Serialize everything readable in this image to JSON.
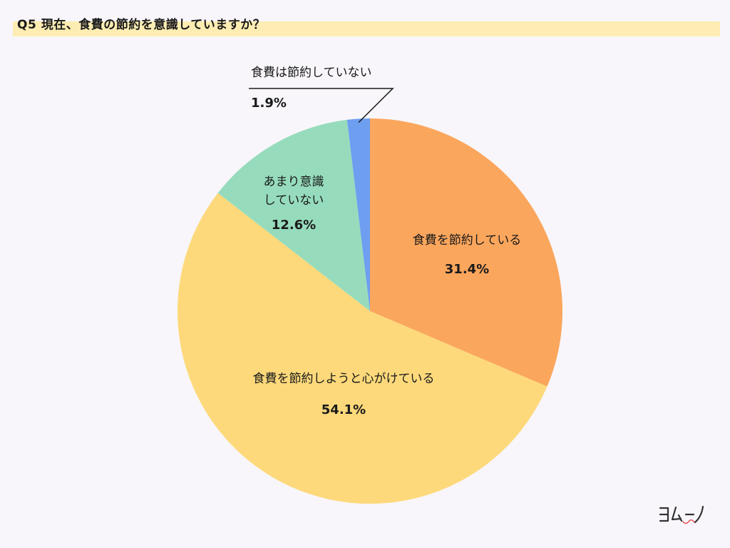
{
  "header": {
    "title": "Q5 現在、食費の節約を意識していますか？"
  },
  "chart_data": {
    "type": "pie",
    "start_angle_deg": 0,
    "direction": "clockwise",
    "slices": [
      {
        "label_lines": [
          "食費を節約している"
        ],
        "value": 31.4,
        "value_label": "31.4%",
        "color": "#fba65d"
      },
      {
        "label_lines": [
          "食費を節約しようと心がけている"
        ],
        "value": 54.1,
        "value_label": "54.1%",
        "color": "#fdd97b"
      },
      {
        "label_lines": [
          "あまり意識",
          "していない"
        ],
        "value": 12.6,
        "value_label": "12.6%",
        "color": "#96dcbc"
      },
      {
        "label_lines": [
          "食費は節約していない"
        ],
        "value": 1.9,
        "value_label": "1.9%",
        "color": "#6d9ef0"
      }
    ]
  },
  "logo": {
    "text": "ヨムーノ",
    "accent_color": "#e25a5a"
  }
}
